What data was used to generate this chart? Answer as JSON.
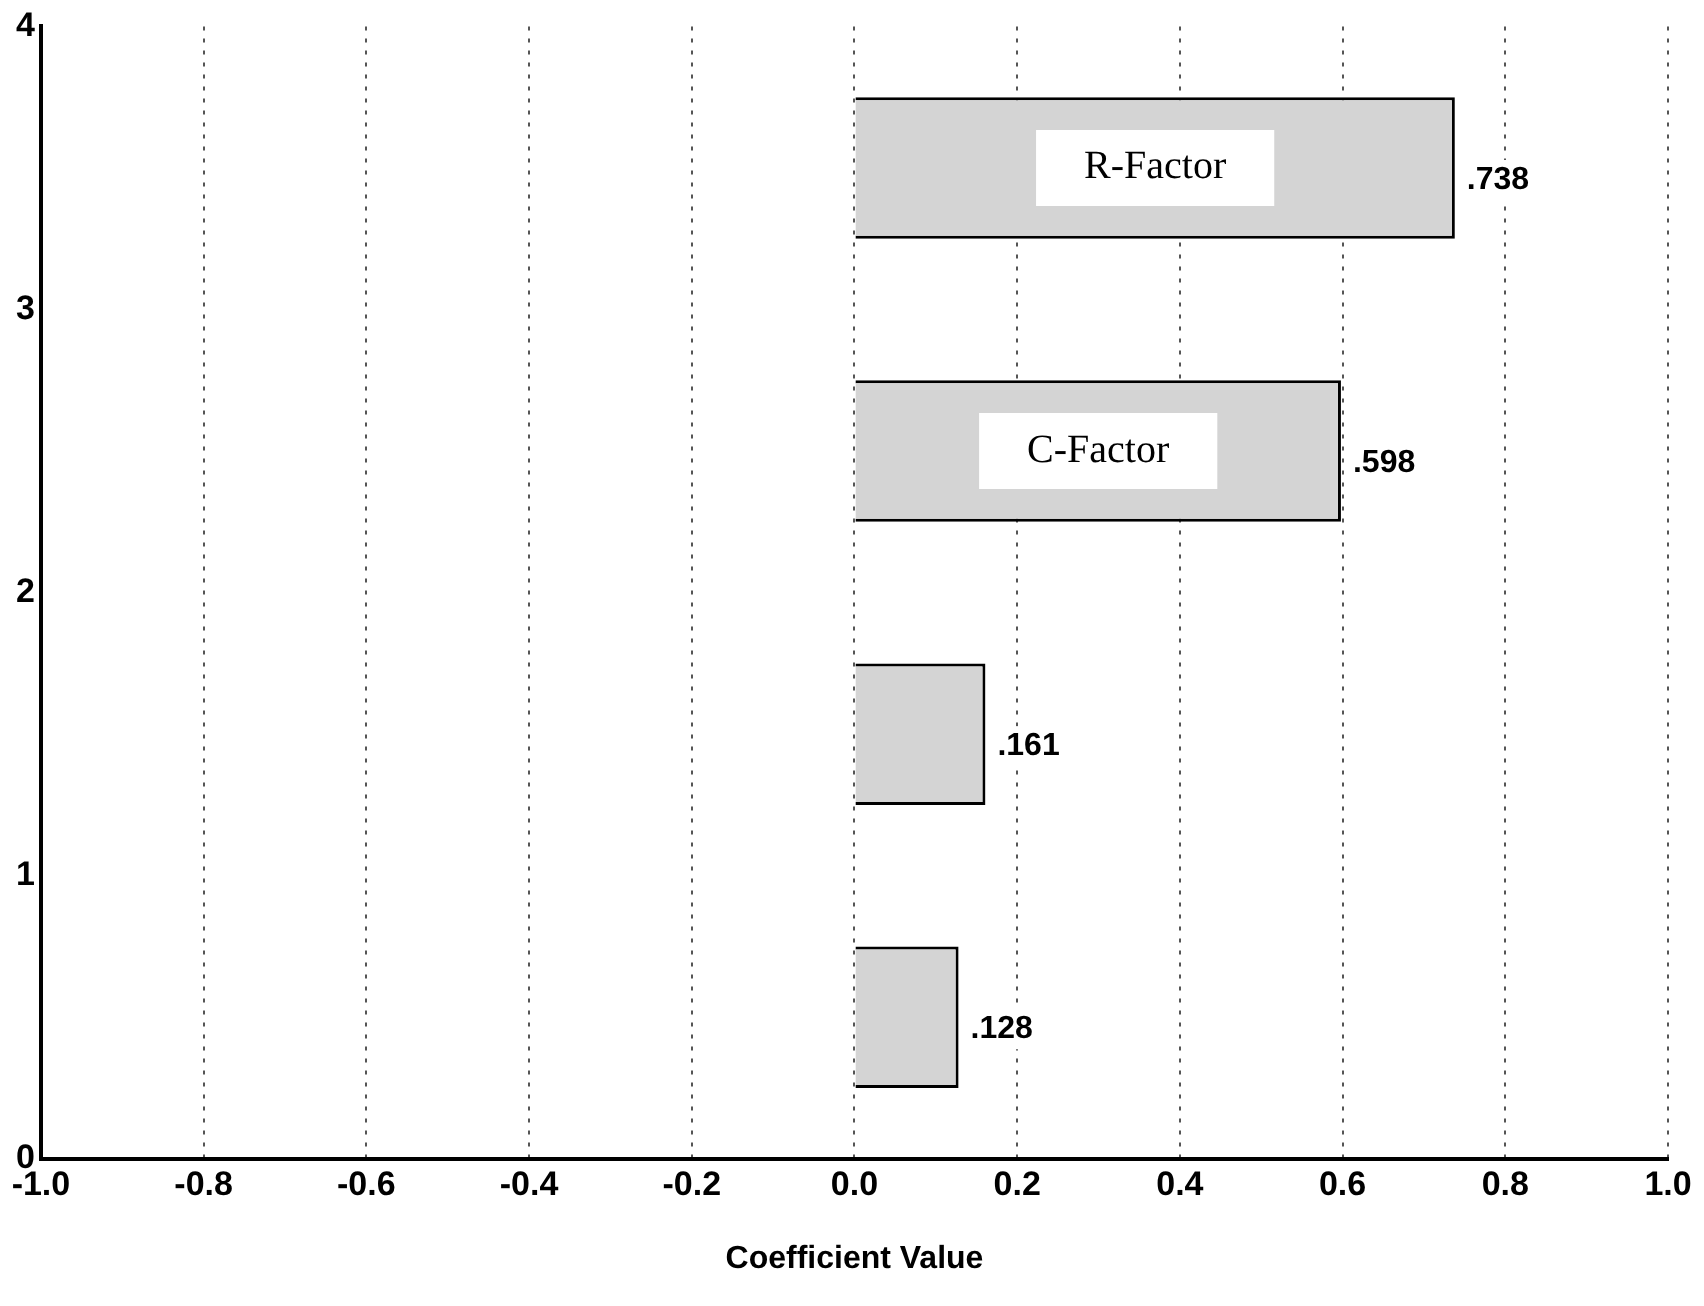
{
  "chart_data": {
    "type": "bar",
    "orientation": "horizontal",
    "xlabel": "Coefficient Value",
    "x": [
      3.5,
      2.5,
      1.5,
      0.5
    ],
    "values": [
      0.738,
      0.598,
      0.161,
      0.128
    ],
    "value_labels": [
      ".738",
      ".598",
      ".161",
      ".128"
    ],
    "color": "#d4d4d4",
    "xlim": [
      -1,
      1
    ],
    "xticks": [
      {
        "value": -1,
        "label": "-1.0"
      },
      {
        "value": -0.8,
        "label": "-0.8"
      },
      {
        "value": -0.6,
        "label": "-0.6"
      },
      {
        "value": -0.4,
        "label": "-0.4"
      },
      {
        "value": -0.2,
        "label": "-0.2"
      },
      {
        "value": 0,
        "label": "0.0"
      },
      {
        "value": 0.2,
        "label": "0.2"
      },
      {
        "value": 0.4,
        "label": "0.4"
      },
      {
        "value": 0.6,
        "label": "0.6"
      },
      {
        "value": 0.8,
        "label": "0.8"
      },
      {
        "value": 1,
        "label": "1.0"
      }
    ],
    "ylim": [
      0,
      4
    ],
    "yticks": [
      0,
      1,
      2,
      3,
      4
    ],
    "annotations": [
      "R-Factor",
      "C-Factor"
    ],
    "grid": "x",
    "legend": false
  }
}
